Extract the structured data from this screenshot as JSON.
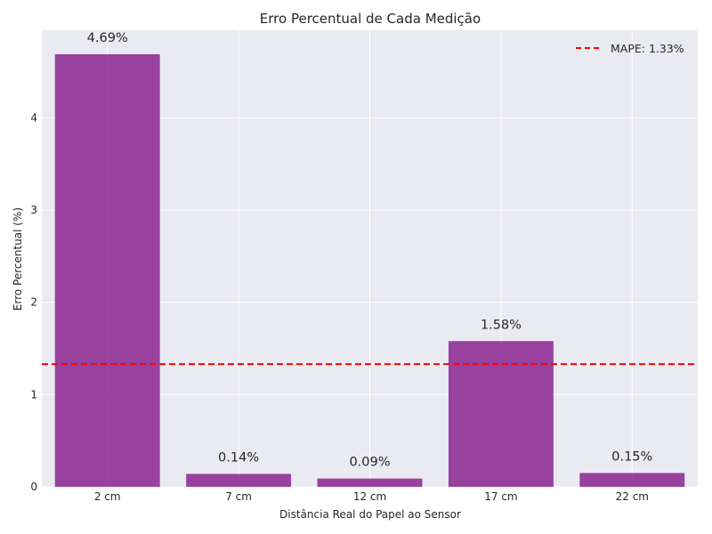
{
  "chart_data": {
    "type": "bar",
    "title": "Erro Percentual de Cada Medição",
    "xlabel": "Distância Real do Papel ao Sensor",
    "ylabel": "Erro Percentual (%)",
    "categories": [
      "2 cm",
      "7 cm",
      "12 cm",
      "17 cm",
      "22 cm"
    ],
    "values": [
      4.69,
      0.14,
      0.09,
      1.58,
      0.15
    ],
    "data_labels": [
      "4.69%",
      "0.14%",
      "0.09%",
      "1.58%",
      "0.15%"
    ],
    "ylim": [
      0,
      4.95
    ],
    "yticks": [
      0,
      1,
      2,
      3,
      4
    ],
    "bar_color": "#8B2391",
    "grid": true,
    "reference_line": {
      "value": 1.33,
      "label": "MAPE: 1.33%",
      "color": "#ff0000",
      "style": "dashed"
    },
    "legend_position": "top-right",
    "background_color": "#eaeaf2",
    "grid_color": "#ffffff"
  }
}
